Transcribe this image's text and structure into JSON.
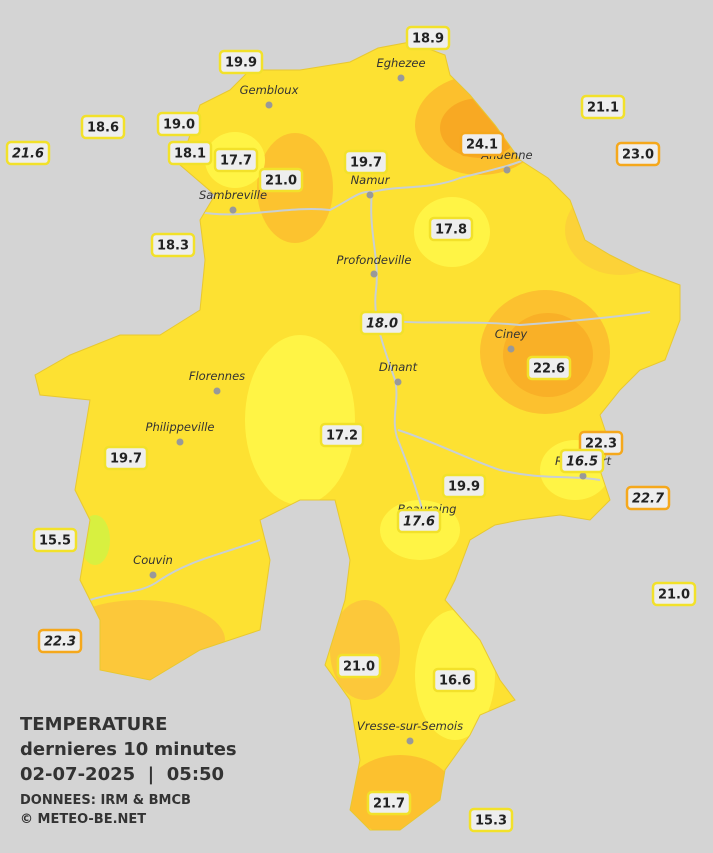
{
  "legend": {
    "title": "TEMPERATURE",
    "subtitle": "dernieres 10 minutes",
    "datetime": "02-07-2025  |  05:50",
    "source": "DONNEES: IRM & BMCB",
    "copyright": "© METEO-BE.NET"
  },
  "towns": [
    "Eghezee",
    "Gembloux",
    "Namur",
    "Andenne",
    "Sambreville",
    "Profondeville",
    "Ciney",
    "Florennes",
    "Dinant",
    "Philippeville",
    "Rochefort",
    "Beauraing",
    "Couvin",
    "Vresse-sur-Semois"
  ],
  "stations": [
    "18.9",
    "19.9",
    "21.1",
    "18.6",
    "19.0",
    "21.6",
    "24.1",
    "23.0",
    "18.1",
    "17.7",
    "21.0",
    "19.7",
    "17.8",
    "18.3",
    "18.0",
    "22.6",
    "17.2",
    "22.3",
    "16.5",
    "19.7",
    "19.9",
    "22.7",
    "17.6",
    "15.5",
    "21.0",
    "22.3",
    "21.0",
    "16.6",
    "21.7",
    "15.3"
  ]
}
